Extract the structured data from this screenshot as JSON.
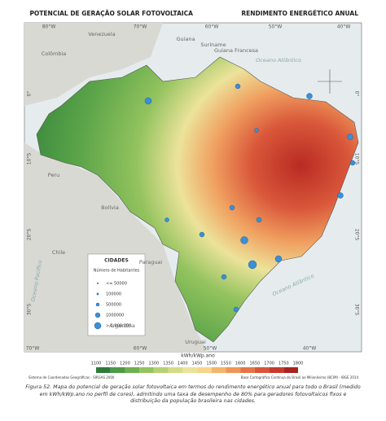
{
  "header": {
    "left_title": "POTENCIAL DE GERAÇÃO SOLAR FOTOVOLTAICA",
    "right_title": "RENDIMENTO ENERGÉTICO ANUAL"
  },
  "coords": {
    "top": [
      "80°W",
      "70°W",
      "60°W",
      "50°W",
      "40°W"
    ],
    "bottom": [
      "70°W",
      "60°W",
      "50°W",
      "40°W"
    ],
    "sides": [
      "0°",
      "10°S",
      "20°S",
      "30°S"
    ]
  },
  "places": [
    "Venezuela",
    "Colômbia",
    "Guiana",
    "Suriname",
    "Guiana Francesa",
    "Peru",
    "Bolívia",
    "Chile",
    "Paraguai",
    "Argentina",
    "Uruguai"
  ],
  "oceans": [
    "Oceano Atlântico",
    "Oceano Pacífico",
    "Oceano Atlântico"
  ],
  "legend": {
    "title": "CIDADES",
    "subtitle": "Número de Habitantes",
    "items": [
      "<= 50000",
      "100000",
      "500000",
      "1000000",
      "> 1.000.000"
    ]
  },
  "colorbar": {
    "unit": "kWh/kWp.ano",
    "ticks": [
      "1100",
      "1150",
      "1200",
      "1250",
      "1300",
      "1350",
      "1400",
      "1450",
      "1500",
      "1550",
      "1600",
      "1650",
      "1700",
      "1750",
      "1800"
    ],
    "colors": [
      "#2f7a3a",
      "#4e9a45",
      "#6fb050",
      "#93c35e",
      "#b5d173",
      "#d3dc85",
      "#ece39a",
      "#f7d58a",
      "#f4b56c",
      "#ef9656",
      "#e57445",
      "#d85538",
      "#c63a2c",
      "#a8231f"
    ]
  },
  "footer": {
    "left": "Sistema de Coordenadas Geográficas - SIRGAS 2000",
    "right": "Base Cartográfica Contínua do Brasil ao Milionésimo (BCIM) - IBGE 2014"
  },
  "caption": "Figura 52. Mapa do potencial de geração solar fotovoltaica em termos do rendimento energético anual para todo o Brasil (medido em kWh/kWp.ano no perfil de cores), admitindo uma taxa de desempenho de 80% para geradores fotovoltaicos fixos e distribuição da população brasileira nas cidades."
}
